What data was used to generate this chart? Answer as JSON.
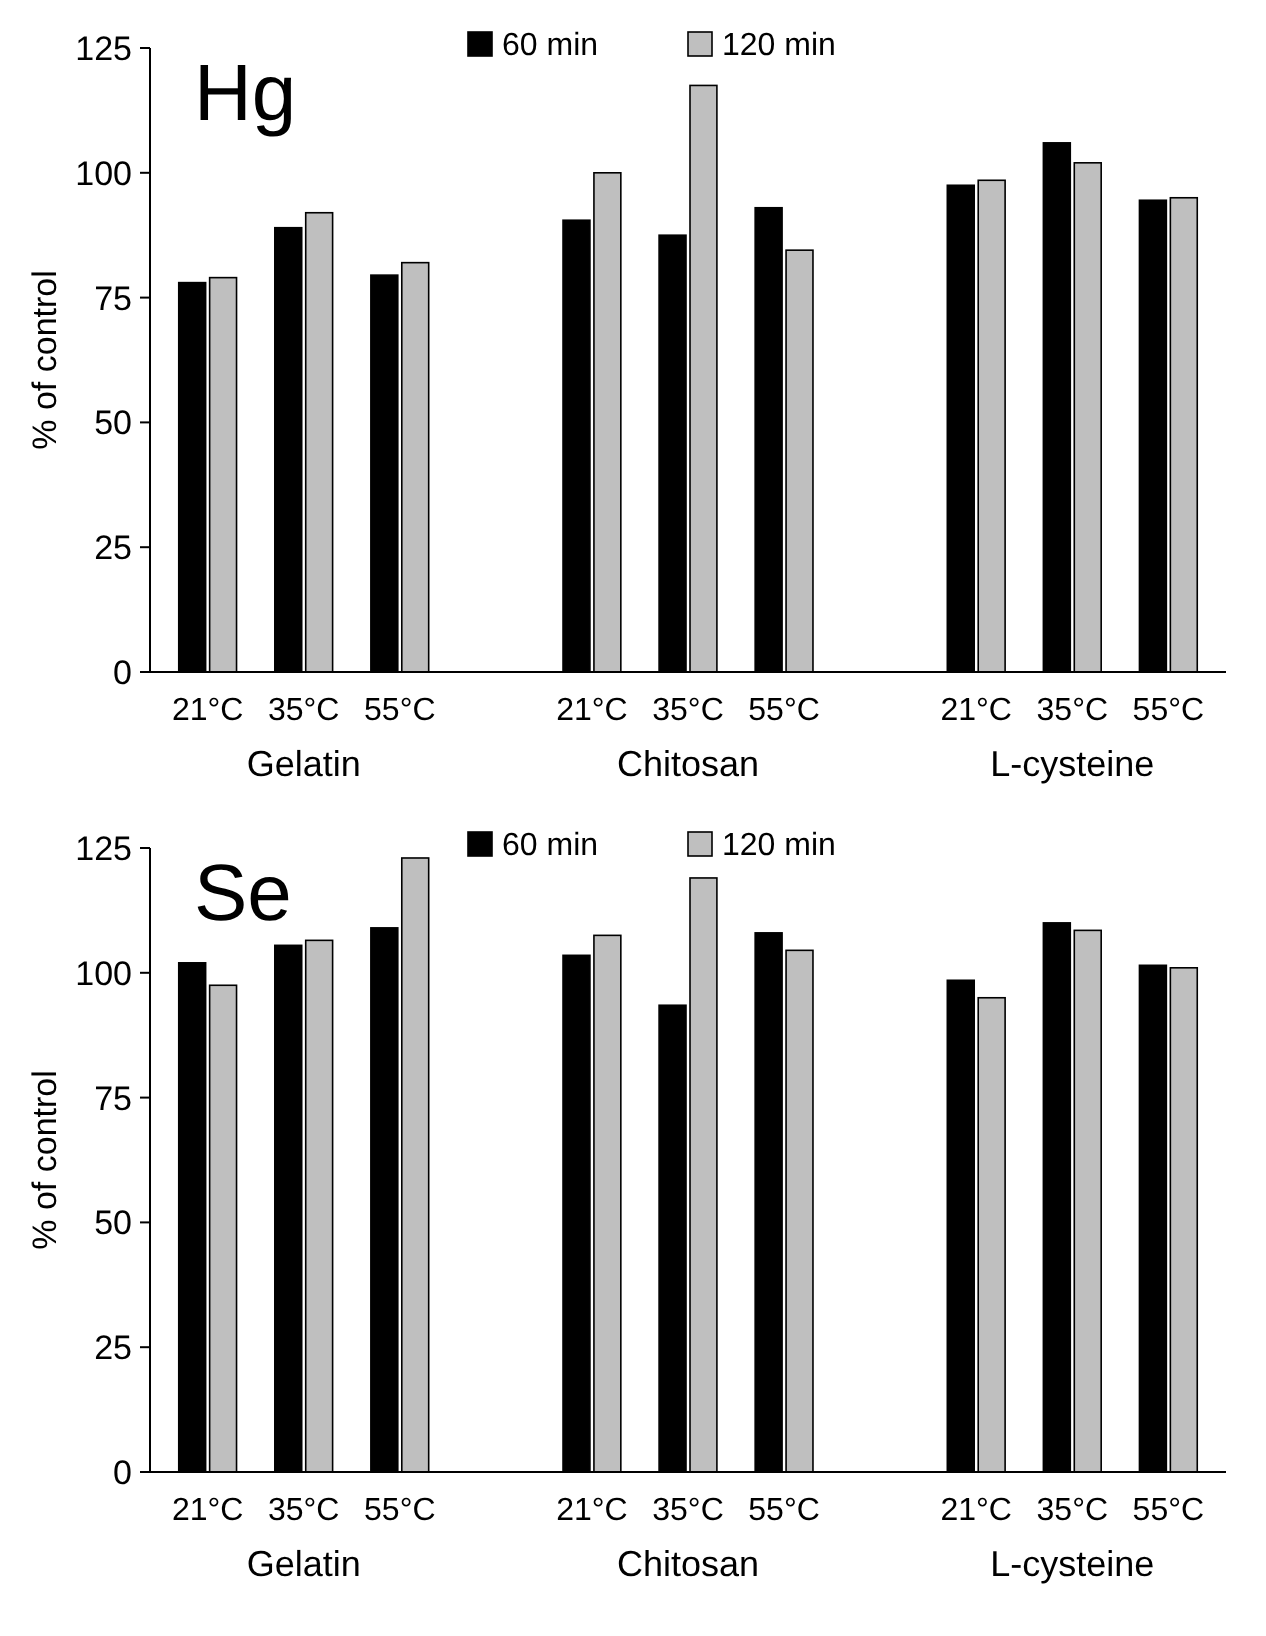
{
  "chart_data": [
    {
      "type": "bar",
      "title": "Hg",
      "ylabel": "% of control",
      "categories": [
        "21°C",
        "35°C",
        "55°C",
        null,
        "21°C",
        "35°C",
        "55°C",
        null,
        "21°C",
        "35°C",
        "55°C"
      ],
      "series": [
        {
          "name": "60 min",
          "color": "#000000",
          "values": [
            78,
            89,
            79.5,
            null,
            90.5,
            87.5,
            93,
            null,
            97.5,
            106,
            94.5
          ]
        },
        {
          "name": "120 min",
          "color": "#bfbfbf",
          "values": [
            79,
            92,
            82,
            null,
            100,
            117.5,
            84.5,
            null,
            98.5,
            102,
            95
          ]
        }
      ],
      "annotations": [
        "Gelatin",
        "Chitosan",
        "L-cysteine"
      ],
      "ylim": [
        0,
        125
      ],
      "yticks": [
        0,
        25,
        50,
        75,
        100,
        125
      ],
      "grid": false,
      "legend": "top"
    },
    {
      "type": "bar",
      "title": "Se",
      "ylabel": "% of control",
      "categories": [
        "21°C",
        "35°C",
        "55°C",
        null,
        "21°C",
        "35°C",
        "55°C",
        null,
        "21°C",
        "35°C",
        "55°C"
      ],
      "series": [
        {
          "name": "60 min",
          "color": "#000000",
          "values": [
            102,
            105.5,
            109,
            null,
            103.5,
            93.5,
            108,
            null,
            98.5,
            110,
            101.5
          ]
        },
        {
          "name": "120 min",
          "color": "#bfbfbf",
          "values": [
            97.5,
            106.5,
            123,
            null,
            107.5,
            119,
            104.5,
            null,
            95,
            108.5,
            101
          ]
        }
      ],
      "annotations": [
        "Gelatin",
        "Chitosan",
        "L-cysteine"
      ],
      "ylim": [
        0,
        125
      ],
      "yticks": [
        0,
        25,
        50,
        75,
        100,
        125
      ],
      "grid": false,
      "legend": "top"
    }
  ]
}
